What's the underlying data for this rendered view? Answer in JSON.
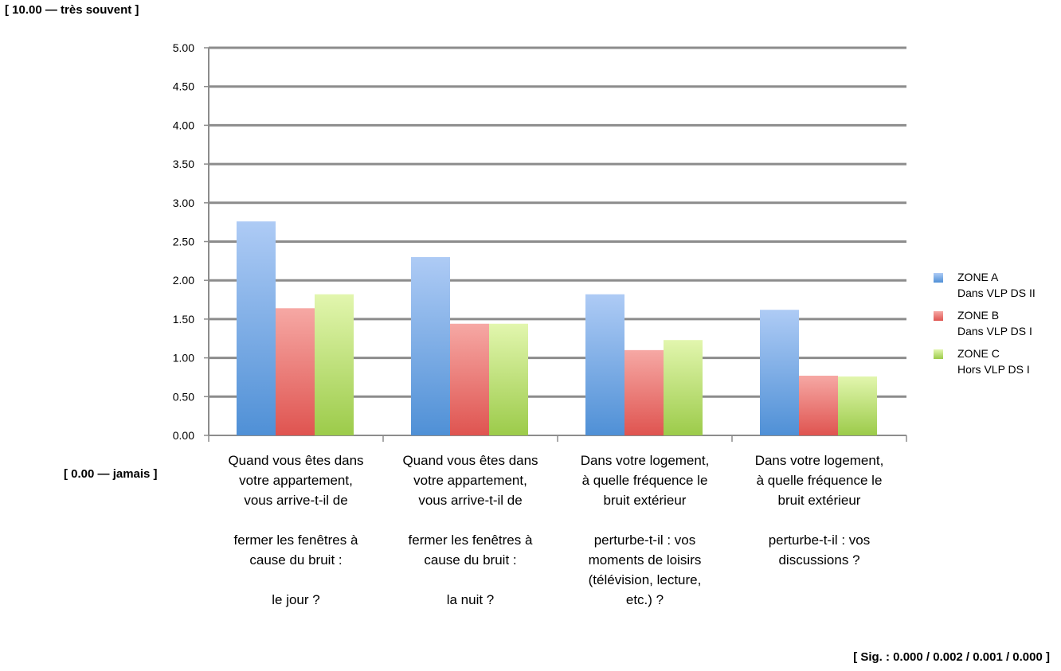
{
  "notes": {
    "top": "[ 10.00 — très souvent ]",
    "bottom": "[ 0.00 — jamais ]",
    "sig": "[ Sig. : 0.000 / 0.002 / 0.001 / 0.000 ]"
  },
  "chart_data": {
    "type": "bar",
    "categories": [
      "Quand vous êtes dans\nvotre appartement,\nvous arrive-t-il de\n\nfermer les fenêtres à\ncause du bruit :\n\nle jour ?",
      "Quand vous êtes dans\nvotre appartement,\nvous arrive-t-il de\n\nfermer les fenêtres à\ncause du bruit :\n\nla nuit ?",
      "Dans votre logement,\nà quelle fréquence le\nbruit extérieur\n\nperturbe-t-il : vos\nmoments de loisirs\n(télévision, lecture,\netc.) ?",
      "Dans votre logement,\nà quelle fréquence le\nbruit extérieur\n\nperturbe-t-il : vos\ndiscussions ?"
    ],
    "series": [
      {
        "name": "ZONE A\nDans VLP DS II",
        "values": [
          2.76,
          2.3,
          1.82,
          1.62
        ]
      },
      {
        "name": "ZONE B\nDans VLP DS I",
        "values": [
          1.64,
          1.44,
          1.1,
          0.77
        ]
      },
      {
        "name": "ZONE C\nHors VLP DS I",
        "values": [
          1.82,
          1.44,
          1.23,
          0.76
        ]
      }
    ],
    "ylim": [
      0,
      5
    ],
    "yticks": [
      "0.00",
      "0.50",
      "1.00",
      "1.50",
      "2.00",
      "2.50",
      "3.00",
      "3.50",
      "4.00",
      "4.50",
      "5.00"
    ],
    "grid": true,
    "legend_position": "right",
    "colors": {
      "ZONE A": {
        "top": "#aecbf5",
        "bottom": "#4f90d6"
      },
      "ZONE B": {
        "top": "#f6a8a4",
        "bottom": "#df5450"
      },
      "ZONE C": {
        "top": "#e2f6ae",
        "bottom": "#9ccb4a"
      }
    },
    "grid_color": "#8c8c8c",
    "axis_color": "#8c8c8c"
  }
}
